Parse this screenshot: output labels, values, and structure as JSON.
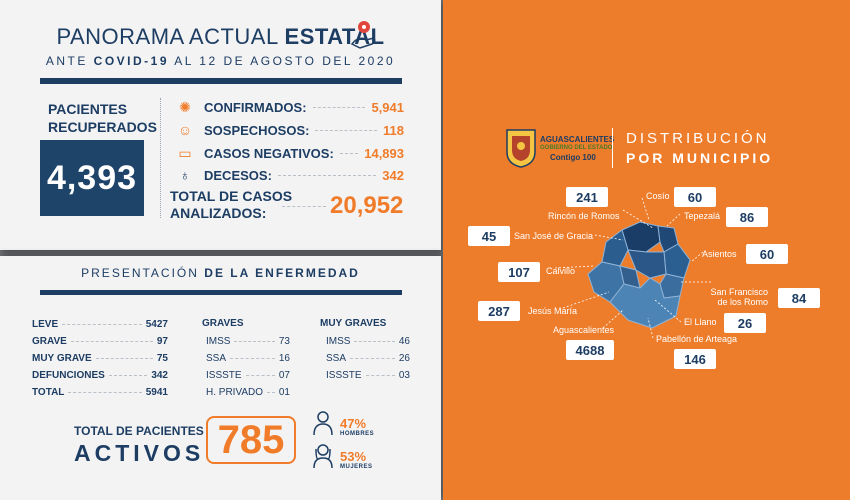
{
  "header": {
    "title_light": "PANORAMA ACTUAL",
    "title_bold": "ESTATAL",
    "subtitle_pre": "ANTE",
    "subtitle_bold": "COVID-19",
    "subtitle_post": "AL 12 DE AGOSTO DEL 2020"
  },
  "recovered": {
    "label_line1": "PACIENTES",
    "label_line2": "RECUPERADOS",
    "value": "4,393"
  },
  "stats": [
    {
      "label": "CONFIRMADOS:",
      "value": "5,941",
      "icon": "virus-icon"
    },
    {
      "label": "SOSPECHOSOS:",
      "value": "118",
      "icon": "person-icon"
    },
    {
      "label": "CASOS NEGATIVOS:",
      "value": "14,893",
      "icon": "mask-icon"
    },
    {
      "label": "DECESOS:",
      "value": "342",
      "icon": "ribbon-icon"
    }
  ],
  "total_cases": {
    "label_line1": "TOTAL DE CASOS",
    "label_line2": "ANALIZADOS:",
    "value": "20,952"
  },
  "presentation": {
    "title_light": "PRESENTACIÓN",
    "title_bold": "DE LA ENFERMEDAD",
    "severity": [
      {
        "label": "LEVE",
        "value": "5427"
      },
      {
        "label": "GRAVE",
        "value": "97"
      },
      {
        "label": "MUY GRAVE",
        "value": "75"
      },
      {
        "label": "DEFUNCIONES",
        "value": "342"
      },
      {
        "label": "TOTAL",
        "value": "5941"
      }
    ],
    "graves": {
      "header": "GRAVES",
      "rows": [
        {
          "label": "IMSS",
          "value": "73"
        },
        {
          "label": "SSA",
          "value": "16"
        },
        {
          "label": "ISSSTE",
          "value": "07"
        },
        {
          "label": "H. PRIVADO",
          "value": "01"
        }
      ]
    },
    "muy_graves": {
      "header": "MUY GRAVES",
      "rows": [
        {
          "label": "IMSS",
          "value": "46"
        },
        {
          "label": "SSA",
          "value": "26"
        },
        {
          "label": "ISSSTE",
          "value": "03"
        }
      ]
    }
  },
  "active": {
    "label": "TOTAL DE PACIENTES",
    "big": "ACTIVOS",
    "value": "785",
    "men_pct": "47%",
    "men_label": "HOMBRES",
    "women_pct": "53%",
    "women_label": "MUJERES"
  },
  "right": {
    "logo_line1": "AGUASCALIENTES",
    "logo_line2": "GOBIERNO DEL ESTADO",
    "logo_line3": "Contigo 100",
    "title1": "DISTRIBUCIÓN",
    "title2": "POR MUNICIPIO",
    "municipalities": [
      {
        "name": "Cosío",
        "value": "60"
      },
      {
        "name": "Rincón de Romos",
        "value": "241"
      },
      {
        "name": "Tepezalá",
        "value": "86"
      },
      {
        "name": "San José de Gracia",
        "value": "45"
      },
      {
        "name": "Asientos",
        "value": "60"
      },
      {
        "name": "Calvillo",
        "value": "107"
      },
      {
        "name_line1": "San Francisco",
        "name_line2": "de los Romo",
        "value": "84"
      },
      {
        "name": "Jesús María",
        "value": "287"
      },
      {
        "name": "El Llano",
        "value": "26"
      },
      {
        "name": "Aguascalientes",
        "value": "4688"
      },
      {
        "name": "Pabellón de Arteaga",
        "value": "146"
      }
    ]
  },
  "colors": {
    "navy": "#1d3d63",
    "orange": "#ee7d2b",
    "map_blue": "#2c5d8a"
  }
}
